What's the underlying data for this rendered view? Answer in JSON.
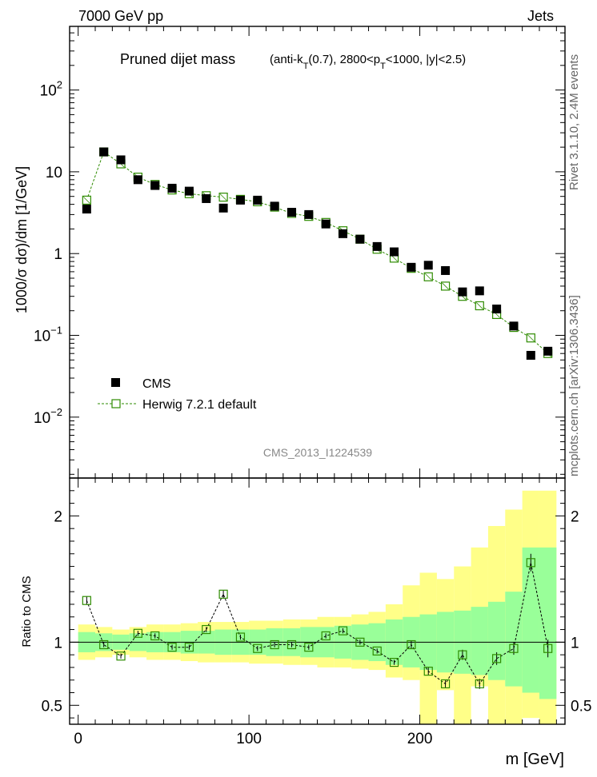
{
  "header": {
    "left": "7000 GeV pp",
    "right": "Jets"
  },
  "side_text": {
    "rivet": "Rivet 3.1.10,  2.4M events",
    "mcplots": "mcplots.cern.ch [arXiv:1306.3436]"
  },
  "watermark": "CMS_2013_I1224539",
  "colors": {
    "cms": "#000000",
    "herwig": "#2e8b00",
    "band_inner": "#99ff99",
    "band_outer": "#ffff88"
  },
  "chart_data": [
    {
      "type": "scatter",
      "title": "Pruned dijet mass",
      "title_sub": {
        "a": "(anti-k",
        "a_sub": "T",
        "b": "(0.7), 2800<p",
        "b_sub": "T",
        "c": "<1000, |y|<2.5)"
      },
      "ylabel": "1000/σ dσ)/dm [1/GeV]",
      "yscale": "log",
      "ylim": [
        0.0018,
        600
      ],
      "xlim": [
        -5,
        285
      ],
      "yticks": [
        {
          "value": 100,
          "base": "10",
          "exp": "2"
        },
        {
          "value": 10,
          "base": "10",
          "exp": ""
        },
        {
          "value": 1,
          "base": "1",
          "exp": ""
        },
        {
          "value": 0.1,
          "base": "10",
          "exp": "−1"
        },
        {
          "value": 0.01,
          "base": "10",
          "exp": "−2"
        }
      ],
      "x": [
        5,
        15,
        25,
        35,
        45,
        55,
        65,
        75,
        85,
        95,
        105,
        115,
        125,
        135,
        145,
        155,
        165,
        175,
        185,
        195,
        205,
        215,
        225,
        235,
        245,
        255,
        265,
        275
      ],
      "series": [
        {
          "name": "CMS",
          "marker": "filled-square",
          "values": [
            3.5,
            17.5,
            14.0,
            8.0,
            6.8,
            6.3,
            5.8,
            4.7,
            3.6,
            4.5,
            4.5,
            3.8,
            3.2,
            3.0,
            2.3,
            1.75,
            1.5,
            1.22,
            1.05,
            0.68,
            0.72,
            0.62,
            0.34,
            0.35,
            0.21,
            0.13,
            0.057,
            0.064
          ]
        },
        {
          "name": "Herwig 7.2.1 default",
          "marker": "open-square-dashed-line",
          "values": [
            4.5,
            17.5,
            12.5,
            8.6,
            7.0,
            6.0,
            5.4,
            5.1,
            4.9,
            4.6,
            4.3,
            3.7,
            3.1,
            2.85,
            2.4,
            1.9,
            1.5,
            1.13,
            0.88,
            0.66,
            0.52,
            0.4,
            0.3,
            0.23,
            0.18,
            0.125,
            0.093,
            0.06
          ]
        }
      ]
    },
    {
      "type": "scatter",
      "ylabel": "Ratio to CMS",
      "xlabel": "m [GeV]",
      "ylim": [
        0.35,
        2.3
      ],
      "xlim": [
        -5,
        285
      ],
      "xticks": [
        0,
        100,
        200
      ],
      "yticks": [
        0.5,
        1,
        2
      ],
      "bin_edges": [
        0,
        10,
        20,
        30,
        40,
        50,
        60,
        70,
        80,
        90,
        100,
        110,
        120,
        130,
        140,
        150,
        160,
        170,
        180,
        190,
        200,
        210,
        220,
        230,
        240,
        250,
        260,
        270,
        280
      ],
      "band_inner": {
        "lo": [
          0.92,
          0.93,
          0.94,
          0.93,
          0.92,
          0.92,
          0.91,
          0.91,
          0.9,
          0.9,
          0.9,
          0.89,
          0.89,
          0.88,
          0.88,
          0.87,
          0.86,
          0.85,
          0.82,
          0.8,
          0.78,
          0.76,
          0.75,
          0.74,
          0.7,
          0.65,
          0.6,
          0.55
        ],
        "hi": [
          1.08,
          1.07,
          1.06,
          1.07,
          1.08,
          1.08,
          1.09,
          1.09,
          1.1,
          1.1,
          1.1,
          1.11,
          1.11,
          1.12,
          1.12,
          1.13,
          1.14,
          1.15,
          1.18,
          1.2,
          1.22,
          1.24,
          1.25,
          1.28,
          1.32,
          1.4,
          1.75,
          1.75
        ]
      },
      "band_outer": {
        "lo": [
          0.86,
          0.88,
          0.9,
          0.88,
          0.86,
          0.86,
          0.85,
          0.84,
          0.84,
          0.84,
          0.83,
          0.83,
          0.82,
          0.82,
          0.8,
          0.8,
          0.79,
          0.78,
          0.72,
          0.7,
          0.35,
          0.62,
          0.35,
          0.65,
          0.35,
          0.35,
          0.4,
          0.35
        ],
        "hi": [
          1.14,
          1.12,
          1.1,
          1.12,
          1.14,
          1.14,
          1.15,
          1.16,
          1.16,
          1.16,
          1.17,
          1.17,
          1.18,
          1.18,
          1.2,
          1.2,
          1.22,
          1.24,
          1.3,
          1.45,
          1.55,
          1.5,
          1.6,
          1.75,
          1.92,
          2.05,
          2.2,
          2.2
        ]
      },
      "series": [
        {
          "name": "Herwig 7.2.1 default / CMS",
          "values": [
            1.33,
            0.98,
            0.89,
            1.07,
            1.05,
            0.96,
            0.96,
            1.1,
            1.38,
            1.04,
            0.95,
            0.98,
            0.98,
            0.96,
            1.05,
            1.09,
            1.0,
            0.93,
            0.84,
            0.98,
            0.77,
            0.67,
            0.9,
            0.67,
            0.87,
            0.95,
            1.63,
            0.95
          ],
          "err": [
            0.03,
            0.02,
            0.02,
            0.02,
            0.02,
            0.02,
            0.02,
            0.02,
            0.03,
            0.02,
            0.02,
            0.02,
            0.02,
            0.02,
            0.02,
            0.02,
            0.02,
            0.02,
            0.02,
            0.03,
            0.03,
            0.03,
            0.04,
            0.04,
            0.05,
            0.05,
            0.07,
            0.07
          ]
        }
      ],
      "reference_line": 1
    }
  ]
}
